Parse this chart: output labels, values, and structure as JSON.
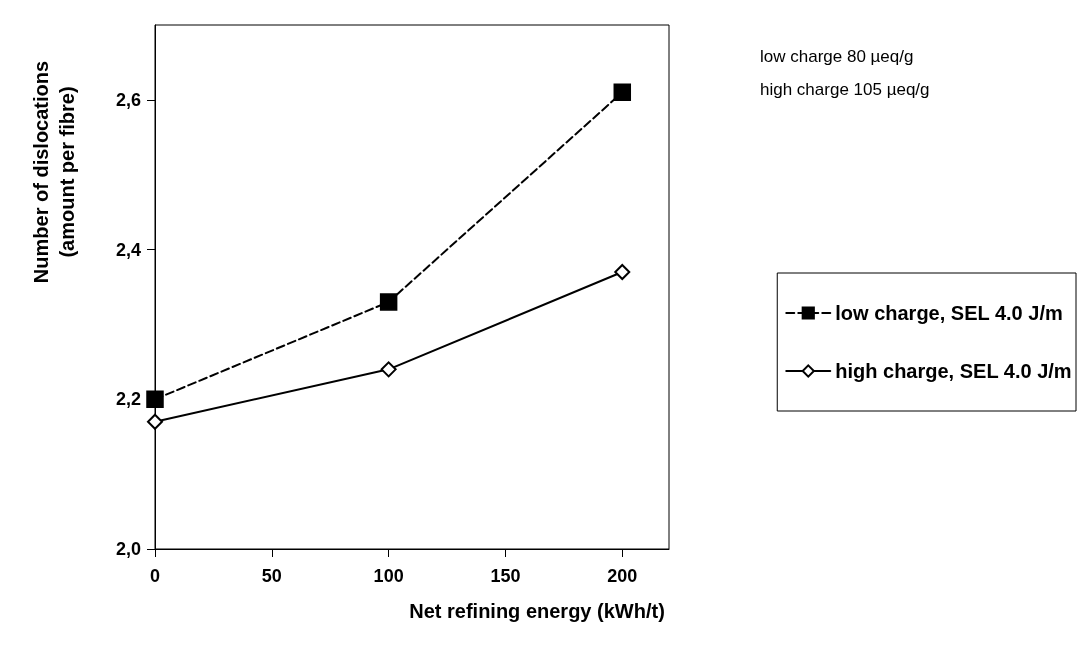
{
  "chart_data": {
    "type": "line",
    "xlabel": "Net refining energy (kWh/t)",
    "ylabel": "Number of dislocations\n(amount per fibre)",
    "x": [
      0,
      100,
      200
    ],
    "series": [
      {
        "name": "low charge, SEL 4.0 J/m",
        "color": "#000000",
        "values": [
          2.2,
          2.33,
          2.61
        ],
        "marker": "square",
        "line_style": "dashed"
      },
      {
        "name": "high charge, SEL 4.0 J/m",
        "color": "#000000",
        "values": [
          2.17,
          2.24,
          2.37
        ],
        "marker": "diamond",
        "line_style": "solid"
      }
    ],
    "xlim": [
      0,
      220
    ],
    "xticks": [
      0,
      50,
      100,
      150,
      200
    ],
    "ylim": [
      2.0,
      2.7
    ],
    "yticks": [
      {
        "value": 2.0,
        "label": "2,0"
      },
      {
        "value": 2.2,
        "label": "2,2"
      },
      {
        "value": 2.4,
        "label": "2,4"
      },
      {
        "value": 2.6,
        "label": "2,6"
      }
    ],
    "legend": "right",
    "grid": false,
    "annotations": [
      "low charge 80 µeq/g",
      "high charge 105 µeq/g"
    ]
  }
}
